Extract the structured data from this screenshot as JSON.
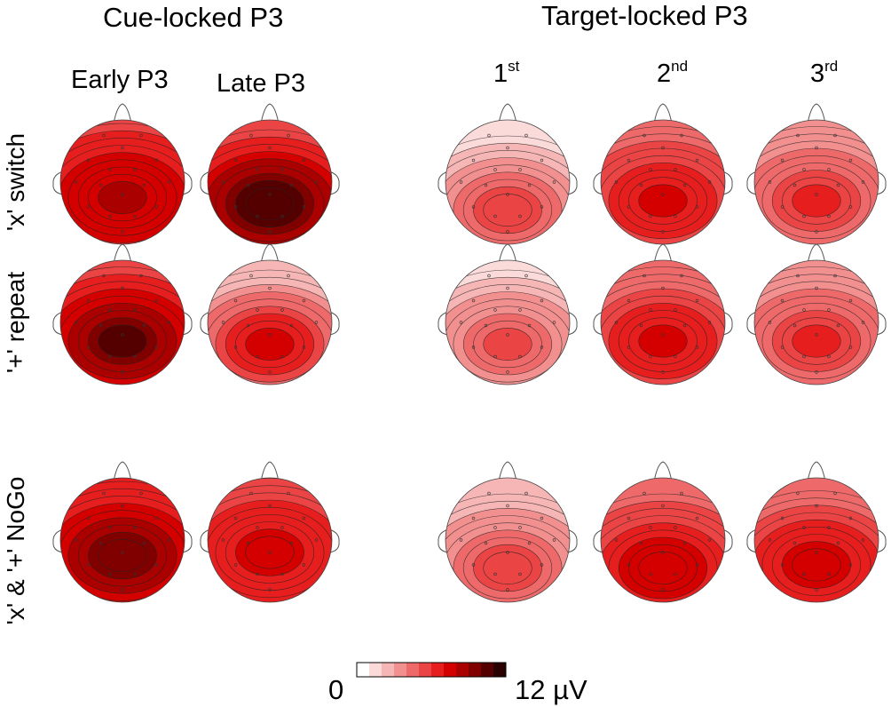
{
  "groups": {
    "cue": "Cue-locked P3",
    "target": "Target-locked P3"
  },
  "columns": [
    {
      "label": "Early P3",
      "sup": ""
    },
    {
      "label": "Late P3",
      "sup": ""
    },
    {
      "label": "1",
      "sup": "st"
    },
    {
      "label": "2",
      "sup": "nd"
    },
    {
      "label": "3",
      "sup": "rd"
    }
  ],
  "rows": [
    {
      "label": "'x' switch"
    },
    {
      "label": "'+' repeat"
    },
    {
      "label": "'x' & '+' NoGo"
    }
  ],
  "colorbar": {
    "min_label": "0",
    "max_label": "12 µV",
    "range": [
      0,
      12
    ],
    "colors": [
      "#ffffff",
      "#fbdada",
      "#f7b6b6",
      "#f29090",
      "#ee6a6a",
      "#ea4444",
      "#e61e1e",
      "#d40000",
      "#aa0000",
      "#800000",
      "#550000",
      "#2a0000"
    ]
  },
  "maps": [
    [
      {
        "peak": 8.6,
        "edge": 5.8,
        "cy": 0.25
      },
      {
        "peak": 11.4,
        "edge": 5.4,
        "cy": 0.35
      },
      {
        "peak": 6.4,
        "edge": 1.6,
        "cy": 0.45
      },
      {
        "peak": 7.4,
        "edge": 4.4,
        "cy": 0.3
      },
      {
        "peak": 6.4,
        "edge": 3.2,
        "cy": 0.3
      }
    ],
    [
      {
        "peak": 10.6,
        "edge": 5.6,
        "cy": 0.3
      },
      {
        "peak": 8.2,
        "edge": 2.0,
        "cy": 0.35
      },
      {
        "peak": 5.6,
        "edge": 1.8,
        "cy": 0.35
      },
      {
        "peak": 7.6,
        "edge": 4.0,
        "cy": 0.3
      },
      {
        "peak": 6.4,
        "edge": 3.0,
        "cy": 0.3
      }
    ],
    [
      {
        "peak": 10.0,
        "edge": 6.0,
        "cy": 0.25
      },
      {
        "peak": 7.6,
        "edge": 5.2,
        "cy": 0.2
      },
      {
        "peak": 6.2,
        "edge": 2.2,
        "cy": 0.45
      },
      {
        "peak": 8.4,
        "edge": 4.6,
        "cy": 0.45
      },
      {
        "peak": 8.2,
        "edge": 4.4,
        "cy": 0.4
      }
    ]
  ]
}
